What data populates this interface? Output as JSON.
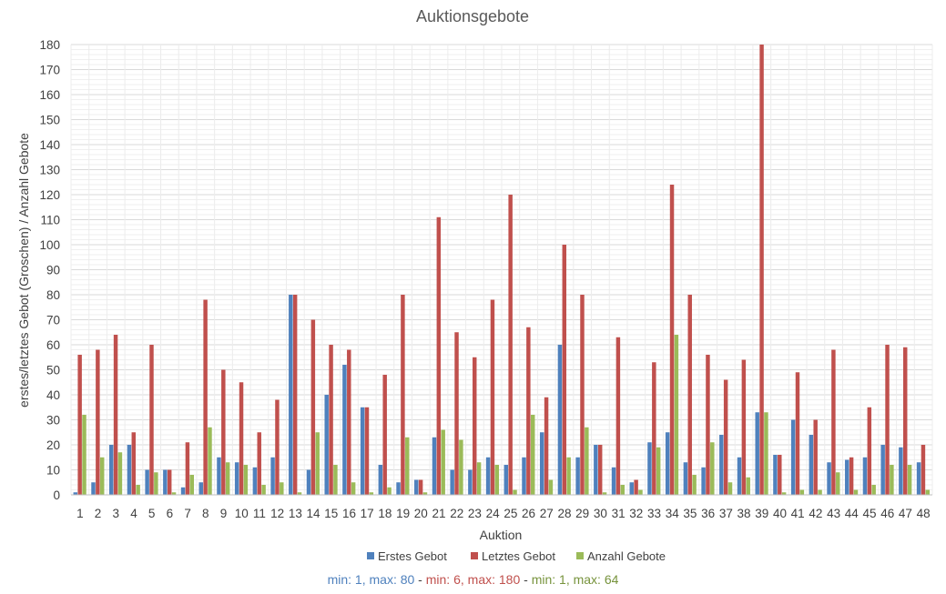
{
  "chart_data": {
    "type": "bar",
    "title": "Auktionsgebote",
    "xlabel": "Auktion",
    "ylabel": "erstes/letztes Gebot (Groschen) / Anzahl Gebote",
    "ylim": [
      0,
      180
    ],
    "yticks": [
      0,
      10,
      20,
      30,
      40,
      50,
      60,
      70,
      80,
      90,
      100,
      110,
      120,
      130,
      140,
      150,
      160,
      170,
      180
    ],
    "grid": true,
    "legend_position": "bottom",
    "categories": [
      "1",
      "2",
      "3",
      "4",
      "5",
      "6",
      "7",
      "8",
      "9",
      "10",
      "11",
      "12",
      "13",
      "14",
      "15",
      "16",
      "17",
      "18",
      "19",
      "20",
      "21",
      "22",
      "23",
      "24",
      "25",
      "26",
      "27",
      "28",
      "29",
      "30",
      "31",
      "32",
      "33",
      "34",
      "35",
      "36",
      "37",
      "38",
      "39",
      "40",
      "41",
      "42",
      "43",
      "44",
      "45",
      "46",
      "47",
      "48"
    ],
    "series": [
      {
        "name": "Erstes Gebot",
        "color": "#4f81bd",
        "values": [
          1,
          5,
          20,
          20,
          10,
          10,
          3,
          5,
          15,
          13,
          11,
          15,
          80,
          10,
          40,
          52,
          35,
          12,
          5,
          6,
          23,
          10,
          10,
          15,
          12,
          15,
          25,
          60,
          15,
          20,
          11,
          5,
          21,
          25,
          13,
          11,
          24,
          15,
          33,
          16,
          30,
          24,
          13,
          14,
          15,
          20,
          19,
          13
        ]
      },
      {
        "name": "Letztes Gebot",
        "color": "#c0504d",
        "values": [
          56,
          58,
          64,
          25,
          60,
          10,
          21,
          78,
          50,
          45,
          25,
          38,
          80,
          70,
          60,
          58,
          35,
          48,
          80,
          6,
          111,
          65,
          55,
          78,
          120,
          67,
          39,
          100,
          80,
          20,
          63,
          6,
          53,
          124,
          80,
          56,
          46,
          54,
          180,
          16,
          49,
          30,
          58,
          15,
          35,
          60,
          59,
          20
        ]
      },
      {
        "name": "Anzahl Gebote",
        "color": "#9bbb59",
        "values": [
          32,
          15,
          17,
          4,
          9,
          1,
          8,
          27,
          13,
          12,
          4,
          5,
          1,
          25,
          12,
          5,
          1,
          3,
          23,
          1,
          26,
          22,
          13,
          12,
          2,
          32,
          6,
          15,
          27,
          1,
          4,
          2,
          19,
          64,
          8,
          21,
          5,
          7,
          33,
          1,
          2,
          2,
          9,
          2,
          4,
          12,
          12,
          2
        ]
      }
    ]
  },
  "stats": {
    "s1_min_label": "min: 1, max: 80",
    "sep1": " - ",
    "s2_min_label": "min: 6, max: 180",
    "sep2": " - ",
    "s3_min_label": "min: 1, max: 64",
    "colors": {
      "s1": "#4f81bd",
      "s2": "#c0504d",
      "s3": "#77933c",
      "sep": "#404040"
    }
  }
}
